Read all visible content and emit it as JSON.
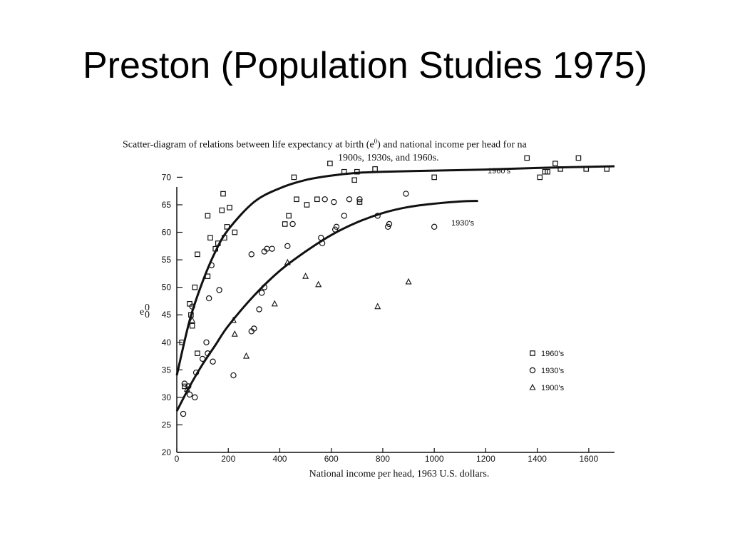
{
  "slide": {
    "title": "Preston (Population Studies 1975)"
  },
  "chart_data": {
    "type": "scatter",
    "caption_line1": "Scatter-diagram of relations between life expectancy at birth (e",
    "caption_line1_end": ") and national income per head for na",
    "caption_line2": "1900s, 1930s, and 1960s.",
    "ylabel": "e",
    "xlabel": "National income per head, 1963 U.S. dollars.",
    "xlim": [
      0,
      1700
    ],
    "ylim": [
      20,
      72
    ],
    "xticks": [
      0,
      200,
      400,
      600,
      800,
      1000,
      1200,
      1400,
      1600
    ],
    "yticks": [
      20,
      25,
      30,
      35,
      40,
      45,
      50,
      55,
      60,
      65,
      70
    ],
    "legend_position": "bottom-right",
    "series": [
      {
        "name": "1960's",
        "marker": "square",
        "points": [
          [
            20,
            40
          ],
          [
            30,
            32
          ],
          [
            50,
            47
          ],
          [
            55,
            45
          ],
          [
            60,
            43
          ],
          [
            70,
            50
          ],
          [
            80,
            56
          ],
          [
            80,
            38
          ],
          [
            120,
            63
          ],
          [
            120,
            52
          ],
          [
            130,
            59
          ],
          [
            150,
            57
          ],
          [
            160,
            58
          ],
          [
            175,
            64
          ],
          [
            180,
            67
          ],
          [
            185,
            59
          ],
          [
            195,
            61
          ],
          [
            205,
            64.5
          ],
          [
            225,
            60
          ],
          [
            420,
            61.5
          ],
          [
            435,
            63
          ],
          [
            455,
            70
          ],
          [
            465,
            66
          ],
          [
            505,
            65
          ],
          [
            545,
            66
          ],
          [
            595,
            72.5
          ],
          [
            650,
            71
          ],
          [
            690,
            69.5
          ],
          [
            700,
            71
          ],
          [
            710,
            65.5
          ],
          [
            770,
            71.5
          ],
          [
            1000,
            70
          ],
          [
            1360,
            73.5
          ],
          [
            1410,
            70
          ],
          [
            1430,
            71
          ],
          [
            1440,
            71
          ],
          [
            1470,
            72.5
          ],
          [
            1490,
            71.5
          ],
          [
            1560,
            73.5
          ],
          [
            1590,
            71.5
          ],
          [
            1670,
            71.5
          ]
        ]
      },
      {
        "name": "1930's",
        "marker": "circle",
        "points": [
          [
            25,
            27
          ],
          [
            30,
            32.5
          ],
          [
            45,
            32
          ],
          [
            50,
            30.5
          ],
          [
            60,
            46.5
          ],
          [
            70,
            30
          ],
          [
            75,
            34.5
          ],
          [
            100,
            37
          ],
          [
            115,
            40
          ],
          [
            120,
            38
          ],
          [
            125,
            48
          ],
          [
            135,
            54
          ],
          [
            140,
            36.5
          ],
          [
            165,
            49.5
          ],
          [
            220,
            34
          ],
          [
            290,
            56
          ],
          [
            290,
            42
          ],
          [
            300,
            42.5
          ],
          [
            320,
            46
          ],
          [
            330,
            49
          ],
          [
            340,
            50
          ],
          [
            340,
            56.5
          ],
          [
            350,
            57
          ],
          [
            370,
            57
          ],
          [
            430,
            57.5
          ],
          [
            450,
            61.5
          ],
          [
            560,
            59
          ],
          [
            565,
            58
          ],
          [
            575,
            66
          ],
          [
            610,
            65.5
          ],
          [
            615,
            60.5
          ],
          [
            620,
            61
          ],
          [
            650,
            63
          ],
          [
            670,
            66
          ],
          [
            710,
            66
          ],
          [
            780,
            63
          ],
          [
            820,
            61
          ],
          [
            825,
            61.5
          ],
          [
            890,
            67
          ],
          [
            1000,
            61
          ]
        ]
      },
      {
        "name": "1900's",
        "marker": "triangle",
        "points": [
          [
            40,
            31.5
          ],
          [
            60,
            44
          ],
          [
            220,
            44
          ],
          [
            225,
            41.5
          ],
          [
            270,
            37.5
          ],
          [
            380,
            47
          ],
          [
            430,
            54.5
          ],
          [
            500,
            52
          ],
          [
            550,
            50.5
          ],
          [
            780,
            46.5
          ],
          [
            900,
            51
          ]
        ]
      }
    ],
    "curves": [
      {
        "name": "1960's",
        "x_end": 1700,
        "points": [
          [
            0,
            34
          ],
          [
            50,
            44
          ],
          [
            100,
            51
          ],
          [
            150,
            56.5
          ],
          [
            200,
            60.5
          ],
          [
            300,
            65.5
          ],
          [
            400,
            68
          ],
          [
            500,
            69.5
          ],
          [
            600,
            70.3
          ],
          [
            700,
            70.8
          ],
          [
            800,
            71
          ],
          [
            1000,
            71.2
          ],
          [
            1200,
            71.4
          ],
          [
            1400,
            71.7
          ],
          [
            1700,
            72
          ]
        ]
      },
      {
        "name": "1930's",
        "x_end": 1170,
        "points": [
          [
            0,
            27.5
          ],
          [
            50,
            32
          ],
          [
            100,
            36
          ],
          [
            150,
            39.5
          ],
          [
            200,
            43
          ],
          [
            300,
            48.5
          ],
          [
            400,
            53
          ],
          [
            500,
            56.5
          ],
          [
            600,
            59.5
          ],
          [
            700,
            61.8
          ],
          [
            800,
            63.5
          ],
          [
            900,
            64.6
          ],
          [
            1000,
            65.2
          ],
          [
            1100,
            65.6
          ],
          [
            1170,
            65.7
          ]
        ]
      }
    ]
  }
}
